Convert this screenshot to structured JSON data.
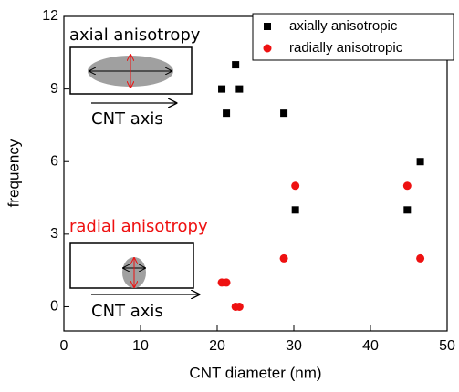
{
  "chart_data": {
    "type": "scatter",
    "x_label": "CNT diameter (nm)",
    "y_label": "frequency",
    "xlim": [
      0,
      50
    ],
    "xticks": [
      0,
      10,
      20,
      30,
      40,
      50
    ],
    "ylim": [
      -1,
      12
    ],
    "yticks": [
      0,
      3,
      6,
      9,
      12
    ],
    "legend": "upper right",
    "series": [
      {
        "name": "axially anisotropic",
        "color": "#000000",
        "marker": "square",
        "x": [
          20.6,
          22.4,
          22.9,
          21.2,
          28.7,
          30.2,
          44.8,
          46.5
        ],
        "values": [
          9,
          10,
          9,
          8,
          8,
          4,
          4,
          6
        ]
      },
      {
        "name": "radially anisotropic",
        "color": "#ee1111",
        "marker": "circle",
        "x": [
          20.6,
          21.2,
          22.4,
          22.9,
          28.7,
          30.2,
          44.8,
          46.5
        ],
        "values": [
          1,
          1,
          0,
          0,
          2,
          5,
          5,
          2
        ]
      }
    ],
    "annotations": [
      {
        "text": "axial anisotropy",
        "color": "#000000"
      },
      {
        "text": "CNT axis",
        "color": "#000000"
      },
      {
        "text": "radial anisotropy",
        "color": "#ee1111"
      },
      {
        "text": "CNT axis",
        "color": "#000000"
      }
    ]
  }
}
